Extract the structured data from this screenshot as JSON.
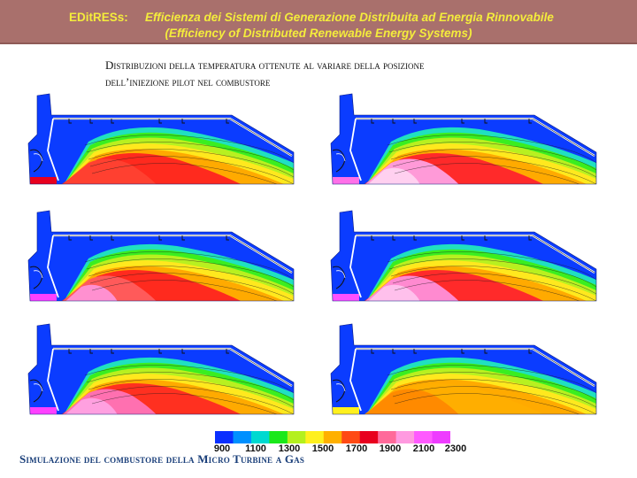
{
  "banner": {
    "brand": "EDitRESs:",
    "title_it": "Efficienza dei Sistemi di Generazione Distribuita ad Energia Rinnovabile",
    "title_en": "(Efficiency of Distributed Renewable Energy Systems)"
  },
  "heading": {
    "line1": "Distribuzioni della temperatura ottenute al variare della posizione",
    "line2": "dell’iniezione pilot nel combustore"
  },
  "colorbar": {
    "ticks": [
      "900",
      "1100",
      "1300",
      "1500",
      "1700",
      "1900",
      "2100",
      "2300"
    ],
    "colors": [
      "#0a2fff",
      "#0090ff",
      "#00d9d0",
      "#1ae81a",
      "#b4f01e",
      "#fff01e",
      "#ffb000",
      "#ff4a14",
      "#e8001e",
      "#ff6a9a",
      "#ff9ae0",
      "#ff5aff",
      "#ee3cff"
    ]
  },
  "footer": "Simulazione del combustore della Micro Turbine a Gas"
}
